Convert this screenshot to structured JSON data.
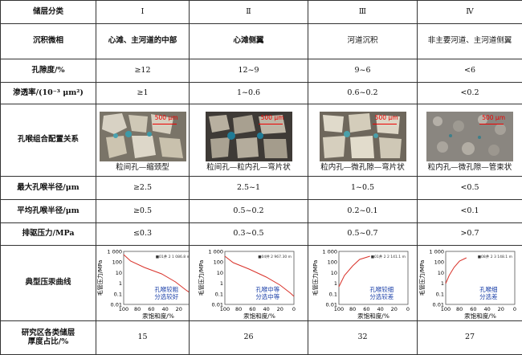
{
  "header": {
    "label": "储层分类",
    "classes": [
      "Ⅰ",
      "Ⅱ",
      "Ⅲ",
      "Ⅳ"
    ]
  },
  "rows": {
    "facies": {
      "label": "沉积微相",
      "values": [
        "心滩、主河道的中部",
        "心滩侧翼",
        "河道沉积",
        "非主要河道、主河道侧翼"
      ]
    },
    "porosity": {
      "label": "孔隙度/%",
      "values": [
        "≥12",
        "12~9",
        "9~6",
        "<6"
      ]
    },
    "permeability": {
      "label": "渗透率/(10⁻³ μm²)",
      "values": [
        "≥1",
        "1~0.6",
        "0.6~0.2",
        "<0.2"
      ]
    },
    "pore_config": {
      "label": "孔喉组合配置关系",
      "scale_label": "500 μm",
      "captions": [
        "粒间孔—缩颈型",
        "粒间孔—粒内孔—弯片状",
        "粒内孔—微孔隙—弯片状",
        "粒内孔—微孔隙—管束状"
      ]
    },
    "max_radius": {
      "label": "最大孔喉半径/μm",
      "values": [
        "≥2.5",
        "2.5~1",
        "1~0.5",
        "<0.5"
      ]
    },
    "mean_radius": {
      "label": "平均孔喉半径/μm",
      "values": [
        "≥0.5",
        "0.5~0.2",
        "0.2~0.1",
        "<0.1"
      ]
    },
    "displacement": {
      "label": "排驱压力/MPa",
      "values": [
        "≤0.3",
        "0.3~0.5",
        "0.5~0.7",
        ">0.7"
      ]
    },
    "curves": {
      "label": "典型压汞曲线",
      "ylabel": "毛管压力/MPa",
      "xlabel": "汞饱和度/%",
      "yticks": [
        "1 000",
        "100",
        "10",
        "1",
        "0.1",
        "0.01"
      ],
      "xticks": [
        "100",
        "80",
        "60",
        "40",
        "20",
        "0"
      ],
      "legends": [
        "■01井 2 1 086.8 m",
        "■04井 2 967.30 m",
        "■01井 2 2 141.1 m",
        "■08井 2 3 148.1 m"
      ],
      "annotations": [
        [
          "孔喉较粗",
          "分选较好"
        ],
        [
          "孔喉中等",
          "分选中等"
        ],
        [
          "孔喉较细",
          "分选较差"
        ],
        [
          "孔喉细",
          "分选差"
        ]
      ]
    },
    "thickness": {
      "label_line1": "研究区各类储层",
      "label_line2": "厚度占比/%",
      "values": [
        "15",
        "26",
        "32",
        "27"
      ]
    }
  },
  "colors": {
    "curve": "#d9322a",
    "annotation": "#1a3fa8",
    "scale": "#e00000"
  }
}
